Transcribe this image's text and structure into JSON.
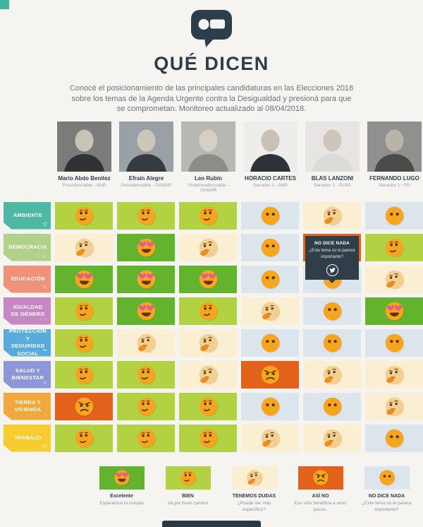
{
  "header": {
    "title": "QUÉ DICEN",
    "logo_icon": "speech-bubble-logo",
    "intro": "Conocé el posicionamiento de las principales candidaturas en las Elecciones 2018 sobre los temas de la Agenda Urgente contra la Desigualdad y presioná para que se comprometan. Monitoreo actualizado al 08/04/2018."
  },
  "palette": {
    "background": "#f5f4f1",
    "ink": "#2d3e4a",
    "tooltip_bg": "#2f3e49",
    "corner_accent": "#41b3a1",
    "emoji": {
      "face": "#f7a51c",
      "pale_face": "#f4cf8f",
      "features": "#4a3320",
      "hand": "#ef8d1c",
      "heart": "#e35f92",
      "mouth": "#5a3517"
    }
  },
  "candidates": [
    {
      "name": "Mario Abdo Benítez",
      "role": "Presidenciable - ANR",
      "photo": {
        "bg": "#7b7b79",
        "head": "#c9c2b6",
        "body": "#2f3336"
      }
    },
    {
      "name": "Efraín Alegre",
      "role": "Presidenciable - GANAR",
      "photo": {
        "bg": "#9aa1a6",
        "head": "#cdc6ba",
        "body": "#363b40"
      }
    },
    {
      "name": "Leo Rubín",
      "role": "Vicepresidenciable - GANAR",
      "photo": {
        "bg": "#b7b7b3",
        "head": "#d6cfc3",
        "body": "#8d8c86"
      }
    },
    {
      "name": "HORACIO CARTES",
      "role": "Senador 1 - ANR",
      "photo": {
        "bg": "#eeedeb",
        "head": "#c9c1b5",
        "body": "#2e3236"
      }
    },
    {
      "name": "BLAS LANZONI",
      "role": "Senador 1 - PLRA",
      "photo": {
        "bg": "#e6e5e3",
        "head": "#cdc5b9",
        "body": "#dcdbd8"
      }
    },
    {
      "name": "FERNANDO LUGO",
      "role": "Senador 1 - FG",
      "photo": {
        "bg": "#90908e",
        "head": "#bab3a7",
        "body": "#4b4c4a"
      }
    }
  ],
  "topics": [
    {
      "label": "AMBIENTE",
      "color": "#4eb8a4",
      "icon": "plant-icon",
      "glyph": "✿"
    },
    {
      "label": "DEMOCRACIA",
      "color": "#b0d288",
      "icon": "people-icon",
      "glyph": "☺☺"
    },
    {
      "label": "EDUCACIÓN",
      "color": "#f0917c",
      "icon": "pencil-icon",
      "glyph": "✎"
    },
    {
      "label": "IGUALDAD DE GÉNERO",
      "color": "#c687c3",
      "icon": "gender-icon",
      "glyph": "♀♂"
    },
    {
      "label": "PROTECCIÓN Y SEGURIDAD SOCIAL",
      "color": "#58abdc",
      "icon": "umbrella-icon",
      "glyph": "☂"
    },
    {
      "label": "SALUD Y BIENESTAR",
      "color": "#8c96d8",
      "icon": "medical-asterisk-icon",
      "glyph": "✳"
    },
    {
      "label": "TIERRA Y VIVIENDA",
      "color": "#f1a93d",
      "icon": "house-icon",
      "glyph": "⌂"
    },
    {
      "label": "TRABAJO",
      "color": "#f8cc2f",
      "icon": "hammer-icon",
      "glyph": "⚒"
    }
  ],
  "ratings": {
    "excelente": {
      "color": "#63b32e",
      "label": "Excelente"
    },
    "bien": {
      "color": "#b3d243",
      "label": "BIEN"
    },
    "dudas": {
      "color": "#faefd3",
      "label": "TENEMOS DUDAS"
    },
    "asino": {
      "color": "#e2611b",
      "label": "ASÍ NO"
    },
    "nada": {
      "color": "#dce5eb",
      "label": "NO DICE NADA"
    }
  },
  "tooltip": {
    "title": "NO DICE NADA",
    "text": "¿Este tema no le parece importante?",
    "icon": "twitter-icon"
  },
  "legend": [
    {
      "key": "excelente",
      "title": "Excelente",
      "caption": "Esperamos la cumpla"
    },
    {
      "key": "bien",
      "title": "BIEN",
      "caption": "Va por buen camino"
    },
    {
      "key": "dudas",
      "title": "TENEMOS DUDAS",
      "caption": "¿Puede ser más específico?"
    },
    {
      "key": "asino",
      "title": "ASÍ NO",
      "caption": "Eso sólo beneficia a unos pocos."
    },
    {
      "key": "nada",
      "title": "NO DICE NADA",
      "caption": "¿Este tema no le parece importante?"
    }
  ],
  "chart_data": {
    "type": "heatmap",
    "title": "QUÉ DICEN",
    "rows": [
      "AMBIENTE",
      "DEMOCRACIA",
      "EDUCACIÓN",
      "IGUALDAD DE GÉNERO",
      "PROTECCIÓN Y SEGURIDAD SOCIAL",
      "SALUD Y BIENESTAR",
      "TIERRA Y VIVIENDA",
      "TRABAJO"
    ],
    "columns": [
      "Mario Abdo Benítez",
      "Efraín Alegre",
      "Leo Rubín",
      "HORACIO CARTES",
      "BLAS LANZONI",
      "FERNANDO LUGO"
    ],
    "values": [
      [
        "bien",
        "bien",
        "bien",
        "nada",
        "dudas",
        "nada"
      ],
      [
        "dudas",
        "excelente",
        "dudas",
        "nada",
        "asino",
        "bien"
      ],
      [
        "excelente",
        "excelente",
        "excelente",
        "nada",
        "nada",
        "dudas"
      ],
      [
        "bien",
        "excelente",
        "bien",
        "dudas",
        "nada",
        "excelente"
      ],
      [
        "bien",
        "dudas",
        "dudas",
        "nada",
        "nada",
        "nada"
      ],
      [
        "bien",
        "bien",
        "dudas",
        "asino",
        "dudas",
        "dudas"
      ],
      [
        "asino",
        "bien",
        "bien",
        "nada",
        "nada",
        "dudas"
      ],
      [
        "bien",
        "bien",
        "bien",
        "dudas",
        "dudas",
        "nada"
      ]
    ],
    "scale": {
      "excelente": "Excelente",
      "bien": "BIEN",
      "dudas": "TENEMOS DUDAS",
      "asino": "ASÍ NO",
      "nada": "NO DICE NADA"
    },
    "legend_position": "bottom"
  }
}
